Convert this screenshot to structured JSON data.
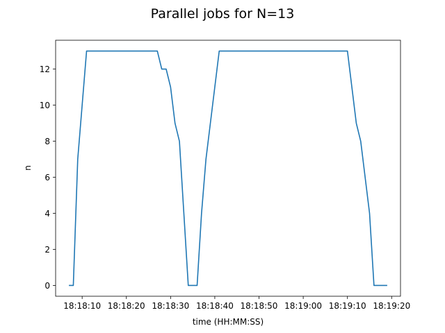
{
  "chart_data": {
    "type": "line",
    "title": "Parallel jobs for N=13",
    "xlabel": "time (HH:MM:SS)",
    "ylabel": "n",
    "xlim": [
      "18:18:04",
      "18:19:22"
    ],
    "ylim": [
      -0.6,
      13.6
    ],
    "x_ticks": [
      "18:18:10",
      "18:18:20",
      "18:18:30",
      "18:18:40",
      "18:18:50",
      "18:19:00",
      "18:19:10",
      "18:19:20"
    ],
    "y_ticks": [
      0,
      2,
      4,
      6,
      8,
      10,
      12
    ],
    "grid": false,
    "series": [
      {
        "color": "#1f77b4",
        "x": [
          "18:18:07",
          "18:18:08",
          "18:18:09",
          "18:18:11",
          "18:18:27",
          "18:18:28",
          "18:18:29",
          "18:18:30",
          "18:18:31",
          "18:18:32",
          "18:18:33",
          "18:18:34",
          "18:18:35",
          "18:18:36",
          "18:18:37",
          "18:18:38",
          "18:18:39",
          "18:18:40",
          "18:18:41",
          "18:18:42",
          "18:18:43",
          "18:18:44",
          "18:18:47",
          "18:18:48",
          "18:18:49",
          "18:18:52",
          "18:19:10",
          "18:19:12",
          "18:19:13",
          "18:19:15",
          "18:19:16",
          "18:19:19"
        ],
        "y": [
          0,
          0,
          7,
          13,
          13,
          12,
          12,
          11,
          9,
          8,
          4,
          0,
          0,
          0,
          4,
          7,
          9,
          11,
          13,
          13,
          13,
          13,
          13,
          13,
          13,
          13,
          13,
          9,
          8,
          4,
          0,
          0
        ]
      }
    ]
  }
}
